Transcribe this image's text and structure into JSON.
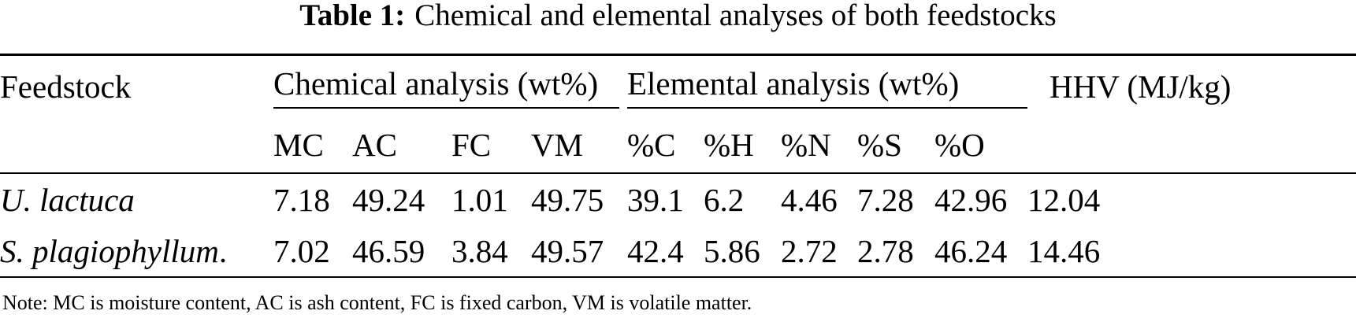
{
  "caption": {
    "label": "Table 1:",
    "text": "Chemical and elemental analyses of both feedstocks"
  },
  "table": {
    "header": {
      "feedstock": "Feedstock",
      "chemical_group": "Chemical analysis (wt%)",
      "elemental_group": "Elemental analysis (wt%)",
      "hhv": "HHV (MJ/kg)"
    },
    "subheaders": [
      "MC",
      "AC",
      "FC",
      "VM",
      "%C",
      "%H",
      "%N",
      "%S",
      "%O"
    ],
    "rows": [
      {
        "name": "U. lactuca",
        "name_suffix": "",
        "values": [
          "7.18",
          "49.24",
          "1.01",
          "49.75",
          "39.1",
          "6.2",
          "4.46",
          "7.28",
          "42.96",
          "12.04"
        ]
      },
      {
        "name": "S. plagiophyllum",
        "name_suffix": ".",
        "values": [
          "7.02",
          "46.59",
          "3.84",
          "49.57",
          "42.4",
          "5.86",
          "2.72",
          "2.78",
          "46.24",
          "14.46"
        ]
      }
    ]
  },
  "note": "Note: MC is moisture content, AC is ash content, FC is fixed carbon, VM is volatile matter."
}
